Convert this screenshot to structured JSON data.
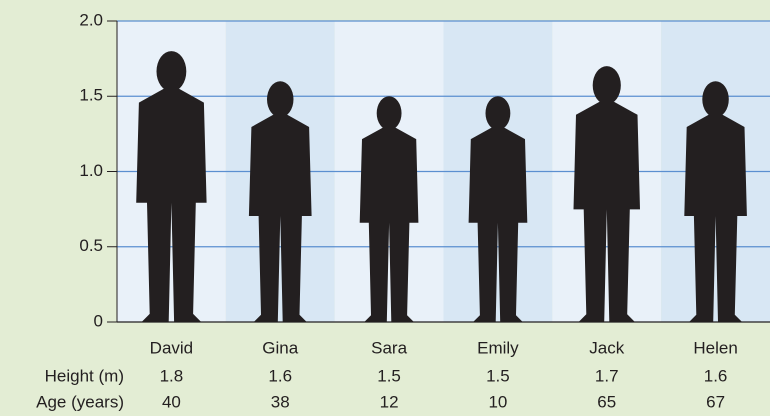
{
  "chart_data": {
    "type": "pictograph",
    "categories": [
      "David",
      "Gina",
      "Sara",
      "Emily",
      "Jack",
      "Helen"
    ],
    "values": [
      1.8,
      1.6,
      1.5,
      1.5,
      1.7,
      1.6
    ],
    "row_labels": [
      "Height (m)",
      "Age (years)"
    ],
    "ages": [
      40,
      38,
      12,
      10,
      65,
      67
    ],
    "color": "#231f20",
    "ylim": [
      0,
      2
    ],
    "yticks": [
      0,
      0.5,
      {
        "value": 1,
        "label": "1.0"
      },
      1.5,
      {
        "value": 2,
        "label": "2.0"
      }
    ],
    "grid": true
  }
}
